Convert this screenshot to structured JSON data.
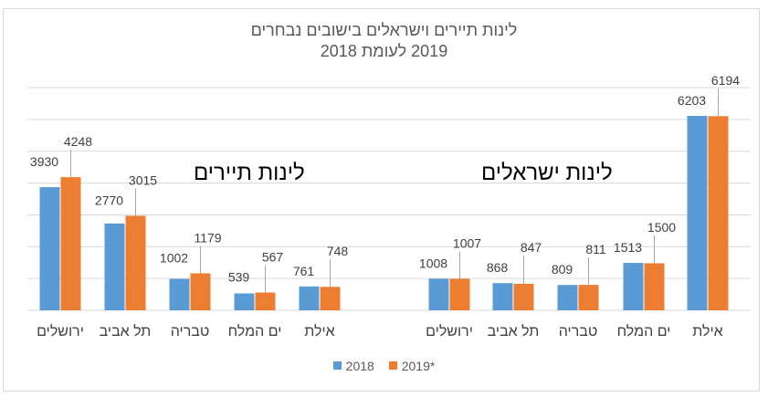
{
  "chart_data": {
    "type": "bar",
    "title": "לינות תיירים וישראלים בישובים נבחרים",
    "subtitle": "2019 לעומת 2018",
    "groups": [
      {
        "label": "לינות תיירים",
        "categories": [
          "ירושלים",
          "תל אביב",
          "טבריה",
          "ים המלח",
          "אילת"
        ],
        "series": [
          {
            "name": "2018",
            "values": [
              3930,
              2770,
              1002,
              539,
              761
            ]
          },
          {
            "name": "*2019",
            "values": [
              4248,
              3015,
              1179,
              567,
              748
            ]
          }
        ]
      },
      {
        "label": "לינות ישראלים",
        "categories": [
          "ירושלים",
          "תל אביב",
          "טבריה",
          "ים המלח",
          "אילת"
        ],
        "series": [
          {
            "name": "2018",
            "values": [
              1008,
              868,
              809,
              1513,
              6203
            ]
          },
          {
            "name": "*2019",
            "values": [
              1007,
              847,
              811,
              1500,
              6194
            ]
          }
        ]
      }
    ],
    "legend": {
      "position": "bottom",
      "entries": [
        "2018",
        "2019*"
      ]
    },
    "gridlines": true,
    "colors": {
      "2018": "#5b9bd5",
      "2019": "#ed7d31",
      "grid": "#d9d9d9",
      "text": "#404040"
    }
  }
}
